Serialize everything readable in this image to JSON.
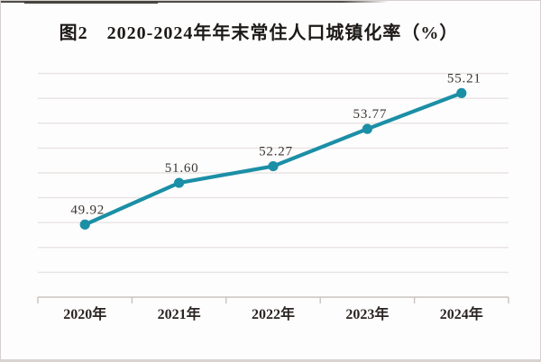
{
  "title": "图2　2020-2024年年末常住人口城镇化率（%）",
  "chart_data": {
    "type": "line",
    "title": "图2　2020-2024年年末常住人口城镇化率（%）",
    "categories": [
      "2020年",
      "2021年",
      "2022年",
      "2023年",
      "2024年"
    ],
    "values": [
      49.92,
      51.6,
      52.27,
      53.77,
      55.21
    ],
    "data_labels": [
      "49.92",
      "51.60",
      "52.27",
      "53.77",
      "55.21"
    ],
    "xlabel": "",
    "ylabel": "",
    "ylim": [
      47,
      56
    ],
    "grid_step": 1,
    "gridlines": "horizontal",
    "y_axis_labels_visible": false,
    "legend": "none"
  },
  "colors": {
    "line": "#1b8fa6",
    "marker": "#1b8fa6",
    "gridline": "#e7e3e2",
    "axis": "#c9c3c1",
    "data_label": "#3a3531",
    "x_label": "#2a2523",
    "title": "#1c1917",
    "top_edge": "#4c4c49",
    "frame_border": "#d6d0cf",
    "background": "#fefdfd"
  }
}
